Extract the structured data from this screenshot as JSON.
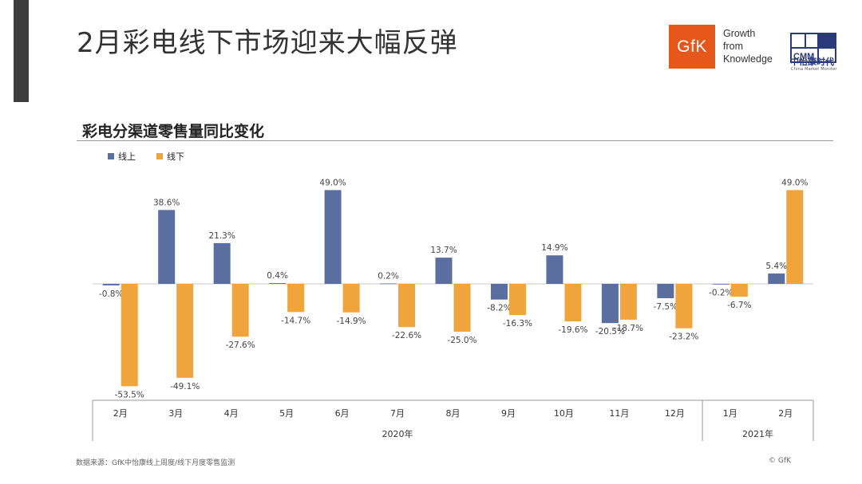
{
  "header": {
    "title": "2月彩电线下市场迎来大幅反弹",
    "gfk_logo_text": "GfK",
    "gfk_slogan": [
      "Growth",
      "from",
      "Knowledge"
    ],
    "cmm_logo_text": "CMM",
    "cmm_name_cn": "中怡康时代",
    "cmm_name_en": "China Market Monitor"
  },
  "colors": {
    "online": "#5a6fa0",
    "offline": "#f0a43c",
    "gfk_orange": "#e8571a",
    "cmm_navy": "#2a3a7a"
  },
  "chart_data": {
    "type": "bar",
    "title": "彩电分渠道零售量同比变化",
    "categories": [
      "2月",
      "3月",
      "4月",
      "5月",
      "6月",
      "7月",
      "8月",
      "9月",
      "10月",
      "11月",
      "12月",
      "1月",
      "2月"
    ],
    "groups": [
      {
        "label": "2020年",
        "categories": [
          "2月",
          "3月",
          "4月",
          "5月",
          "6月",
          "7月",
          "8月",
          "9月",
          "10月",
          "11月",
          "12月"
        ]
      },
      {
        "label": "2021年",
        "categories": [
          "1月",
          "2月"
        ]
      }
    ],
    "series": [
      {
        "name": "线上",
        "values": [
          -0.8,
          38.6,
          21.3,
          0.4,
          49.0,
          0.2,
          13.7,
          -8.2,
          14.9,
          -20.5,
          -7.5,
          -0.2,
          5.4
        ],
        "labels": [
          "-0.8%",
          "38.6%",
          "21.3%",
          "0.4%",
          "49.0%",
          "0.2%",
          "13.7%",
          "-8.2%",
          "14.9%",
          "-20.5%",
          "-7.5%",
          "-0.2%",
          "5.4%"
        ]
      },
      {
        "name": "线下",
        "values": [
          -53.5,
          -49.1,
          -27.6,
          -14.7,
          -14.9,
          -22.6,
          -25.0,
          -16.3,
          -19.6,
          -18.7,
          -23.2,
          -6.7,
          49.0
        ],
        "labels": [
          "-53.5%",
          "-49.1%",
          "-27.6%",
          "-14.7%",
          "-14.9%",
          "-22.6%",
          "-25.0%",
          "-16.3%",
          "-19.6%",
          "-18.7%",
          "-23.2%",
          "-6.7%",
          "49.0%"
        ]
      }
    ],
    "legend_position": "top-left",
    "grid": false
  },
  "footer": {
    "source": "数据来源：GfK中怡康线上周度/线下月度零售监测",
    "copyright": "© GfK"
  }
}
